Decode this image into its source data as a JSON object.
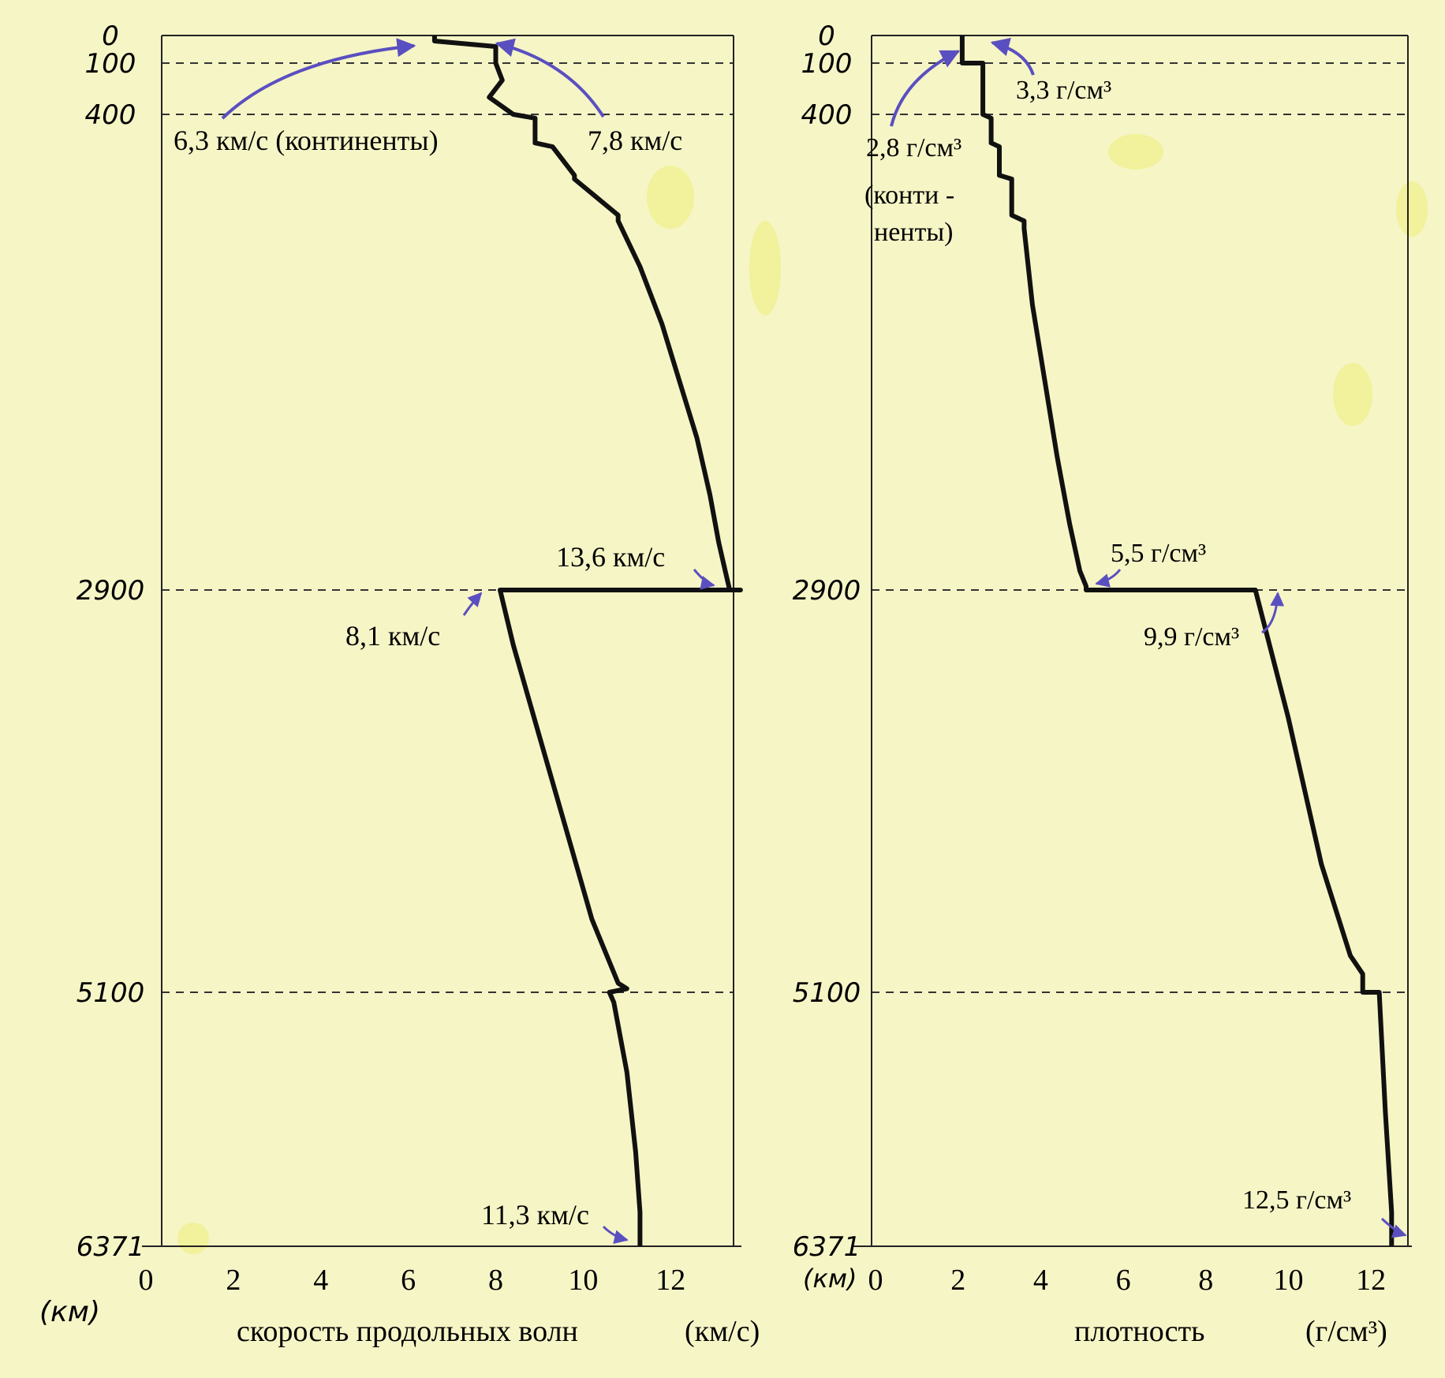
{
  "chart_data": [
    {
      "type": "line",
      "title": "",
      "xlabel": "скорость продольных волн",
      "xunit": "(км/с)",
      "ylabel": "(км)",
      "xlim": [
        0,
        13.8
      ],
      "ylim": [
        0,
        6371
      ],
      "y_inverted": true,
      "x_ticks": [
        "0",
        "2",
        "4",
        "6",
        "8",
        "10",
        "12"
      ],
      "y_ticks": [
        "0",
        "100",
        "400",
        "2900",
        "5100",
        "6371"
      ],
      "y_tick_values": [
        0,
        100,
        400,
        2900,
        5100,
        6371
      ],
      "boundaries": [
        100,
        400,
        2900,
        5100
      ],
      "series": [
        {
          "x": [
            6.6,
            6.6,
            8.0,
            8.0,
            8.15,
            7.85,
            8.4,
            8.9,
            8.9,
            9.3,
            9.8,
            9.8,
            10.8,
            10.8,
            11.3,
            11.8,
            12.2,
            12.6,
            12.9,
            13.1,
            13.25,
            13.35,
            13.6,
            8.1,
            8.4,
            9.0,
            9.6,
            10.2,
            10.8,
            11.0,
            10.6,
            10.7,
            11.0,
            11.2,
            11.3,
            11.3
          ],
          "y": [
            0,
            20,
            40,
            100,
            200,
            300,
            400,
            420,
            550,
            570,
            720,
            740,
            930,
            960,
            1200,
            1500,
            1800,
            2100,
            2400,
            2650,
            2800,
            2900,
            2900,
            2900,
            3200,
            3700,
            4200,
            4700,
            5050,
            5080,
            5100,
            5150,
            5500,
            5900,
            6200,
            6371
          ]
        }
      ],
      "annotations": [
        {
          "text": "6,3 км/с (континенты)"
        },
        {
          "text": "7,8 км/с"
        },
        {
          "text": "13,6 км/с"
        },
        {
          "text": "8,1 км/с"
        },
        {
          "text": "11,3 км/с"
        }
      ]
    },
    {
      "type": "line",
      "title": "",
      "xlabel": "плотность",
      "xunit": "(г/см³)",
      "ylabel": "(км)",
      "xlim": [
        0,
        12.8
      ],
      "ylim": [
        0,
        6371
      ],
      "y_inverted": true,
      "x_ticks": [
        "0",
        "2",
        "4",
        "6",
        "8",
        "10",
        "12"
      ],
      "y_ticks": [
        "0",
        "100",
        "400",
        "2900",
        "5100",
        "6371"
      ],
      "y_tick_values": [
        0,
        100,
        400,
        2900,
        5100,
        6371
      ],
      "boundaries": [
        100,
        400,
        2900,
        5100
      ],
      "series": [
        {
          "x": [
            2.1,
            2.1,
            2.6,
            2.6,
            2.8,
            2.8,
            3.0,
            3.0,
            3.3,
            3.3,
            3.6,
            3.6,
            3.8,
            4.1,
            4.4,
            4.7,
            4.95,
            5.1,
            5.1,
            9.2,
            9.2,
            10.0,
            10.8,
            11.5,
            11.8,
            11.8,
            12.2,
            12.35,
            12.5,
            12.5
          ],
          "y": [
            0,
            100,
            100,
            400,
            420,
            550,
            570,
            720,
            740,
            930,
            960,
            1000,
            1400,
            1800,
            2200,
            2550,
            2800,
            2880,
            2900,
            2900,
            2900,
            3600,
            4400,
            4900,
            5000,
            5100,
            5100,
            5700,
            6200,
            6371
          ]
        }
      ],
      "annotations": [
        {
          "text": "3,3 г/см³"
        },
        {
          "text": "2,8 г/см³"
        },
        {
          "text": "(конти -"
        },
        {
          "text": "ненты)"
        },
        {
          "text": "5,5 г/см³"
        },
        {
          "text": "9,9 г/см³"
        },
        {
          "text": "12,5 г/см³"
        }
      ]
    }
  ]
}
